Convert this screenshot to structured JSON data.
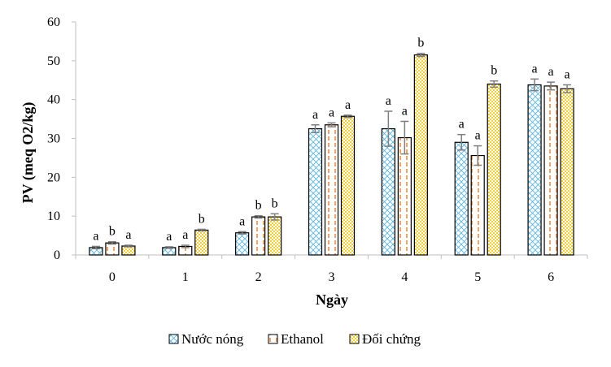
{
  "chart_data": {
    "type": "bar",
    "xlabel": "Ngày",
    "ylabel": "PV (meq O2/kg)",
    "ylim": [
      0,
      60
    ],
    "yticks": [
      0,
      10,
      20,
      30,
      40,
      50,
      60
    ],
    "categories": [
      "0",
      "1",
      "2",
      "3",
      "4",
      "5",
      "6"
    ],
    "grid": false,
    "legend_position": "bottom",
    "series": [
      {
        "name": "Nước nóng",
        "pattern": "diamond-lattice",
        "color": "#5ab4e0",
        "values": [
          1.9,
          1.9,
          5.7,
          32.5,
          32.5,
          29.0,
          43.8
        ],
        "errors": [
          0.3,
          0.2,
          0.3,
          1.0,
          4.5,
          2.0,
          1.5
        ],
        "labels": [
          "a",
          "a",
          "a",
          "a",
          "a",
          "a",
          "a"
        ]
      },
      {
        "name": "Ethanol",
        "pattern": "dashed-vertical",
        "color": "#f08a3c",
        "values": [
          3.1,
          2.2,
          9.8,
          33.5,
          30.2,
          25.6,
          43.5
        ],
        "errors": [
          0.3,
          0.3,
          0.3,
          0.5,
          4.2,
          2.5,
          1.0
        ],
        "labels": [
          "b",
          "a",
          "b",
          "a",
          "a",
          "a",
          "a"
        ]
      },
      {
        "name": "Đối chứng",
        "pattern": "checker",
        "color": "#f2cf3a",
        "values": [
          2.3,
          6.4,
          9.8,
          35.7,
          51.5,
          44.0,
          42.8
        ],
        "errors": [
          0.2,
          0.2,
          0.8,
          0.3,
          0.4,
          0.8,
          1.0
        ],
        "labels": [
          "a",
          "b",
          "b",
          "a",
          "b",
          "b",
          "a"
        ]
      }
    ]
  }
}
